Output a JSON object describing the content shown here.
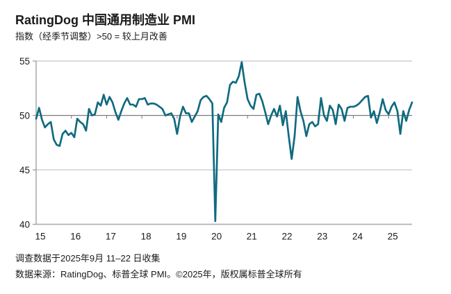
{
  "header": {
    "title": "RatingDog 中国通用制造业 PMI",
    "subtitle": "指数（经季节调整）>50 = 较上月改善"
  },
  "footer": {
    "line1": "调查数据于2025年9月 11–22 日收集",
    "line2": "数据来源：RatingDog、标普全球 PMI。©2025年，版权属标普全球所有"
  },
  "colors": {
    "line": "#106a80",
    "gridline_50": "#7a7a7a",
    "gridline_minor": "#c6c6c6",
    "axis": "#9a9a9a",
    "bottom_axis": "#b3b3b3",
    "tick": "#8a8a8a",
    "label_text": "#1a1a1a"
  },
  "chart_data": {
    "type": "line",
    "title": "RatingDog 中国通用制造业 PMI",
    "subtitle": "指数（经季节调整）>50 = 较上月改善",
    "frequency": "monthly",
    "x_start": "2015-01",
    "x_end": "2025-09",
    "x_tick_labels": [
      "15",
      "16",
      "17",
      "18",
      "19",
      "20",
      "21",
      "22",
      "23",
      "24",
      "25"
    ],
    "y_ticks": [
      55,
      50,
      45,
      40
    ],
    "ylim": [
      40,
      55
    ],
    "reference_line": 50,
    "grid": "horizontal",
    "legend_position": "none",
    "series": [
      {
        "name": "中国通用制造业 PMI",
        "values": [
          49.7,
          50.7,
          49.6,
          48.9,
          49.2,
          49.4,
          47.8,
          47.3,
          47.2,
          48.3,
          48.6,
          48.2,
          48.4,
          48.0,
          49.7,
          49.4,
          49.2,
          48.6,
          50.6,
          50.0,
          50.1,
          51.2,
          50.9,
          51.9,
          51.0,
          51.7,
          51.2,
          50.3,
          49.6,
          50.4,
          51.1,
          51.6,
          51.0,
          51.0,
          50.8,
          51.5,
          51.5,
          51.6,
          51.0,
          51.1,
          51.1,
          51.0,
          50.8,
          50.6,
          50.0,
          50.1,
          50.2,
          49.7,
          48.3,
          49.9,
          50.8,
          50.2,
          50.2,
          49.4,
          49.9,
          50.4,
          51.4,
          51.7,
          51.8,
          51.5,
          51.1,
          40.3,
          50.1,
          49.4,
          50.7,
          51.2,
          52.8,
          53.1,
          53.0,
          53.6,
          54.9,
          53.0,
          51.5,
          50.9,
          50.6,
          51.9,
          52.0,
          51.3,
          50.3,
          49.2,
          50.0,
          50.6,
          49.9,
          50.9,
          49.1,
          50.4,
          48.1,
          46.0,
          48.1,
          51.7,
          50.4,
          49.5,
          48.1,
          49.2,
          49.4,
          49.0,
          49.2,
          51.6,
          50.0,
          49.5,
          50.9,
          50.5,
          49.2,
          51.0,
          50.6,
          49.5,
          50.7,
          50.8,
          50.8,
          50.9,
          51.1,
          51.4,
          51.7,
          51.8,
          49.8,
          50.4,
          49.3,
          50.3,
          51.5,
          50.5,
          50.1,
          50.8,
          51.2,
          50.4,
          48.3,
          50.4,
          49.5,
          50.5,
          51.2
        ]
      }
    ]
  }
}
